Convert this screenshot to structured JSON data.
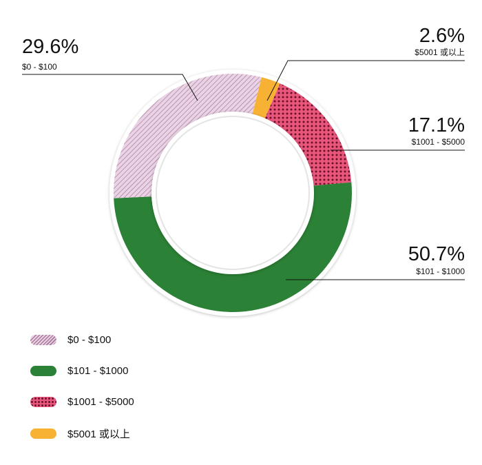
{
  "chart_data": {
    "type": "pie",
    "donut": true,
    "title": "",
    "slices": [
      {
        "label": "$5001 或以上",
        "value": 2.6,
        "display": "2.6%",
        "color": "#f8b233",
        "pattern": "solid"
      },
      {
        "label": "$1001 - $5000",
        "value": 17.1,
        "display": "17.1%",
        "color": "#e8567c",
        "pattern": "dots"
      },
      {
        "label": "$101 - $1000",
        "value": 50.7,
        "display": "50.7%",
        "color": "#2b8135",
        "pattern": "solid"
      },
      {
        "label": "$0 - $100",
        "value": 29.6,
        "display": "29.6%",
        "color": "#e6cde0",
        "pattern": "hatch"
      }
    ],
    "legend_position": "bottom-left",
    "legend_order": [
      3,
      2,
      1,
      0
    ]
  }
}
